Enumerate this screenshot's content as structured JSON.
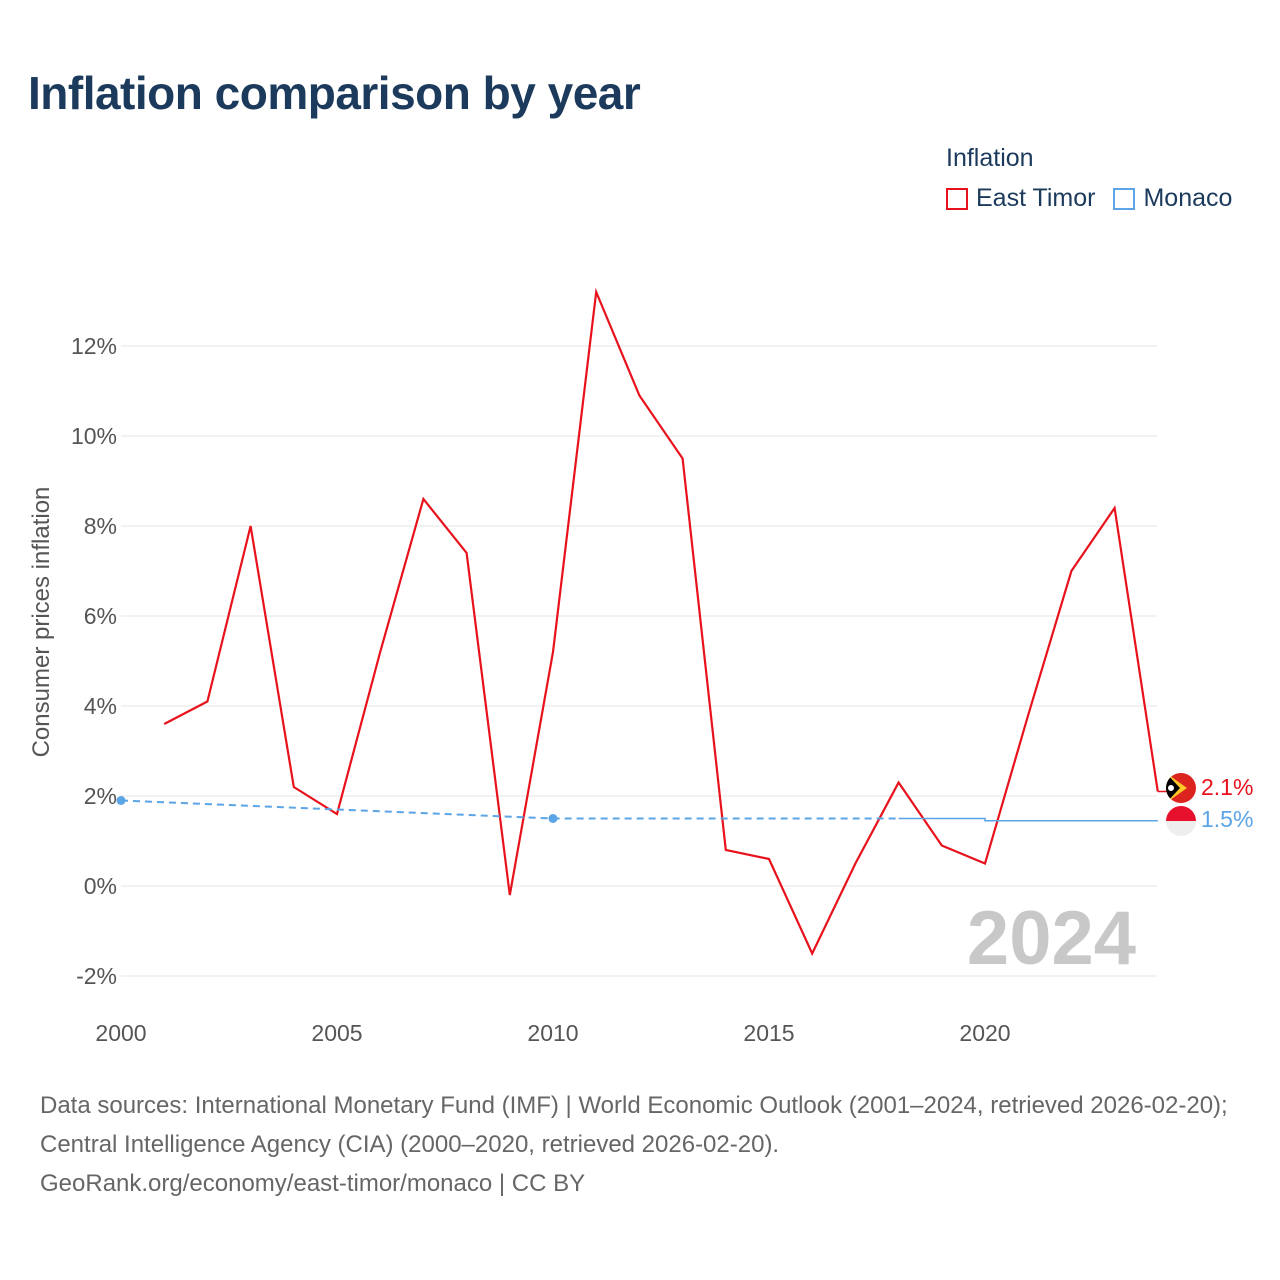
{
  "title": "Inflation comparison by year",
  "legend": {
    "title": "Inflation",
    "items": [
      {
        "label": "East Timor",
        "color": "#e8121c"
      },
      {
        "label": "Monaco",
        "color": "#5ba4e6"
      }
    ]
  },
  "ylabel": "Consumer prices inflation",
  "year_watermark": "2024",
  "end_labels": {
    "east_timor": "2.1%",
    "monaco": "1.5%"
  },
  "source": {
    "line1": "Data sources: International Monetary Fund (IMF) | World Economic Outlook (2001–2024, retrieved 2026-02-20); Central Intelligence Agency (CIA) (2000–2020, retrieved 2026-02-20).",
    "line2": "GeoRank.org/economy/east-timor/monaco | CC BY"
  },
  "chart_data": {
    "type": "line",
    "title": "Inflation comparison by year",
    "xlabel": "",
    "ylabel": "Consumer prices inflation",
    "xlim": [
      2000,
      2024
    ],
    "ylim": [
      -2.4,
      13.5
    ],
    "x_ticks": [
      2000,
      2005,
      2010,
      2015,
      2020
    ],
    "y_ticks": [
      -2,
      0,
      2,
      4,
      6,
      8,
      10,
      12
    ],
    "y_tick_labels": [
      "-2%",
      "0%",
      "2%",
      "4%",
      "6%",
      "8%",
      "10%",
      "12%"
    ],
    "grid": true,
    "legend_position": "top-right",
    "series": [
      {
        "name": "East Timor",
        "color": "#e8121c",
        "x": [
          2001,
          2002,
          2003,
          2004,
          2005,
          2006,
          2007,
          2008,
          2009,
          2010,
          2011,
          2012,
          2013,
          2014,
          2015,
          2016,
          2017,
          2018,
          2019,
          2020,
          2021,
          2022,
          2023,
          2024
        ],
        "values": [
          3.6,
          4.1,
          8.0,
          2.2,
          1.6,
          5.2,
          8.6,
          7.4,
          -0.2,
          5.2,
          13.2,
          10.9,
          9.5,
          0.8,
          0.6,
          -1.5,
          0.5,
          2.3,
          0.9,
          0.5,
          3.8,
          7.0,
          8.4,
          2.1
        ]
      },
      {
        "name": "Monaco",
        "color": "#5ba4e6",
        "source_points": [
          [
            2000,
            1.9
          ],
          [
            2010,
            1.5
          ]
        ],
        "dashed_segment_x": [
          2000,
          2018
        ],
        "x": [
          2000,
          2005,
          2010,
          2018,
          2020,
          2020,
          2024
        ],
        "values": [
          1.9,
          1.7,
          1.5,
          1.5,
          1.5,
          1.45,
          1.45
        ]
      }
    ]
  }
}
